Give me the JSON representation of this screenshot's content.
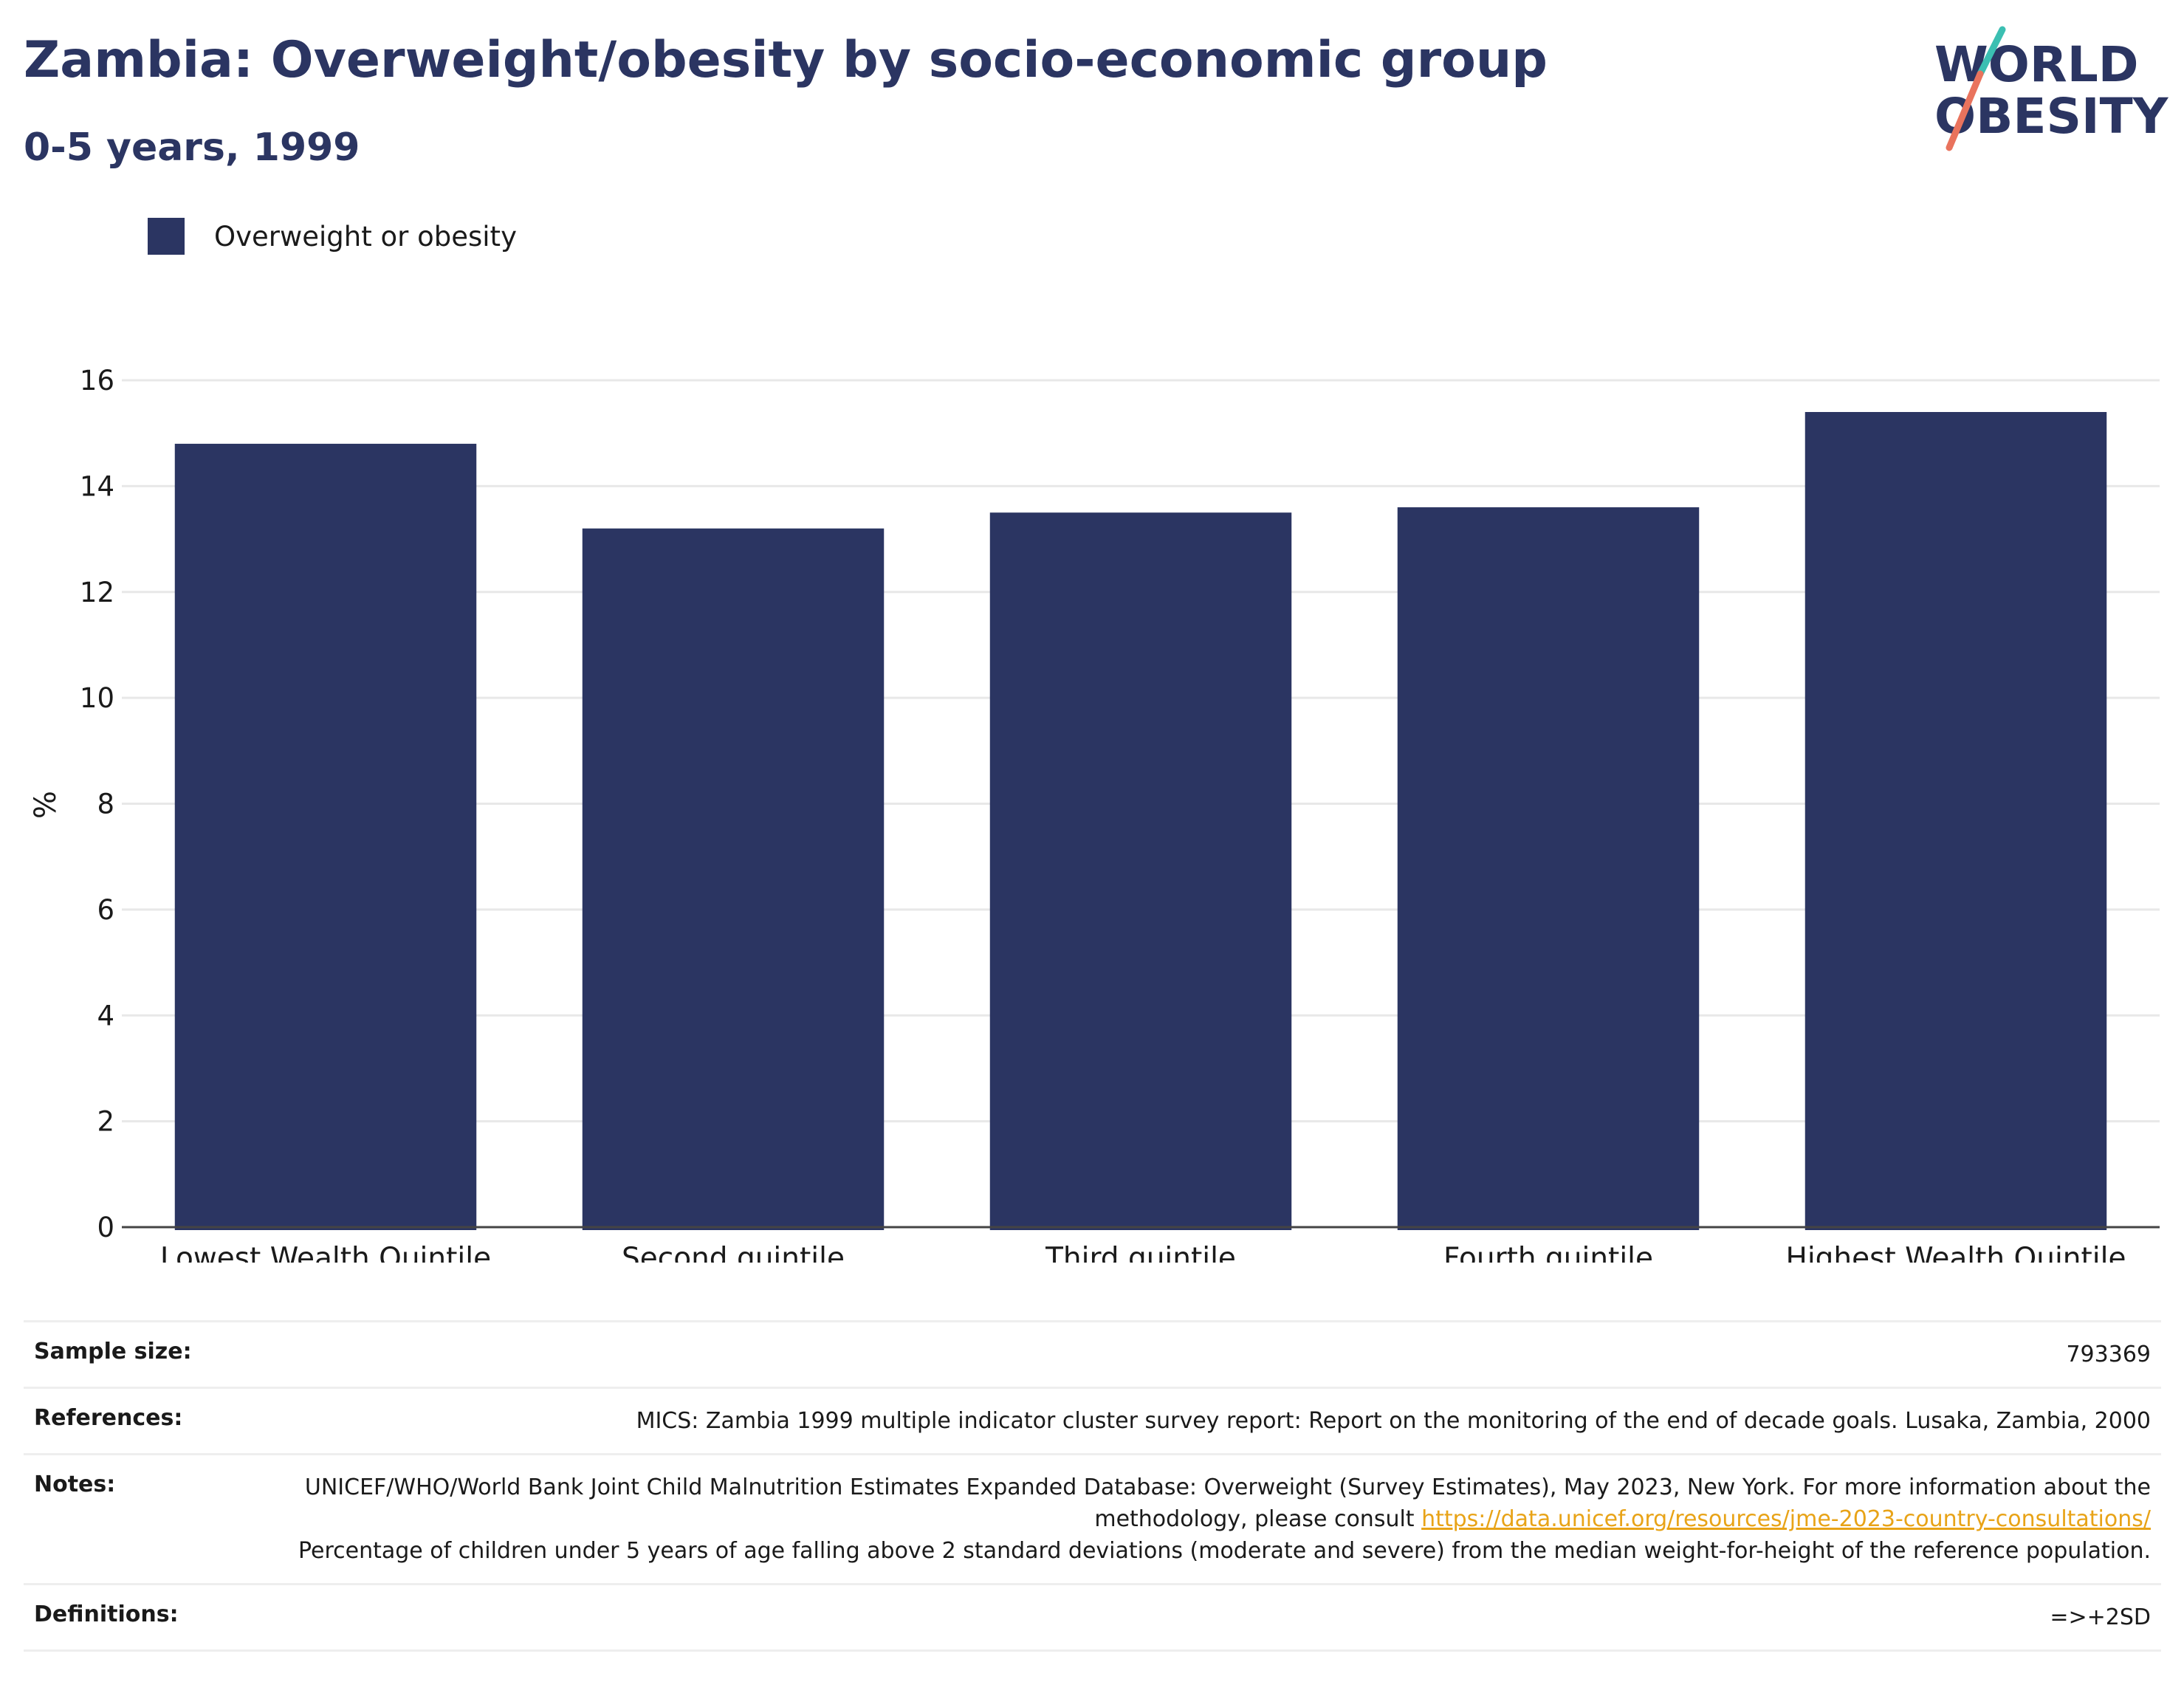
{
  "header": {
    "title": "Zambia: Overweight/obesity by socio-economic group",
    "subtitle": "0-5 years, 1999"
  },
  "logo": {
    "line1": "WORLD",
    "line2": "OBESITY",
    "colors": {
      "text": "#2b3562",
      "slash_teal": "#3bbfb2",
      "slash_coral": "#e9735d"
    }
  },
  "legend": {
    "label": "Overweight or obesity",
    "color": "#2b3562"
  },
  "chart_data": {
    "type": "bar",
    "categories": [
      "Lowest Wealth Quintile",
      "Second quintile",
      "Third quintile",
      "Fourth quintile",
      "Highest Wealth Quintile"
    ],
    "series": [
      {
        "name": "Overweight or obesity",
        "values": [
          14.8,
          13.2,
          13.5,
          13.6,
          15.4
        ],
        "color": "#2b3562"
      }
    ],
    "ylabel": "%",
    "ylim": [
      0,
      16
    ],
    "yticks": [
      0,
      2,
      4,
      6,
      8,
      10,
      12,
      14,
      16
    ],
    "grid": true,
    "legend_position": "top-left"
  },
  "info": {
    "sample_size_label": "Sample size:",
    "sample_size_value": "793369",
    "references_label": "References:",
    "references_value": "MICS: Zambia 1999 multiple indicator cluster survey report: Report on the monitoring of the end of decade goals. Lusaka, Zambia, 2000",
    "notes_label": "Notes:",
    "notes_text_1": "UNICEF/WHO/World Bank Joint Child Malnutrition Estimates Expanded Database: Overweight (Survey Estimates), May 2023, New York. For more information about the methodology, please consult ",
    "notes_link": "https://data.unicef.org/resources/jme-2023-country-consultations/",
    "notes_text_2": "Percentage of children under 5 years of age falling above 2 standard deviations (moderate and severe) from the median weight-for-height of the reference population.",
    "definitions_label": "Definitions:",
    "definitions_value": "=>+2SD"
  }
}
